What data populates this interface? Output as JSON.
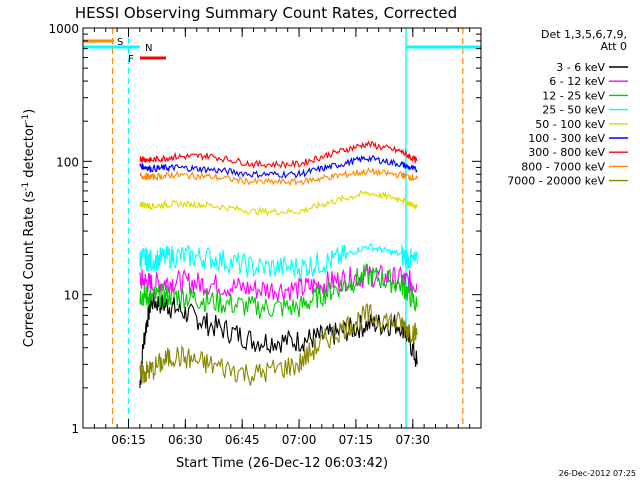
{
  "chart_data": {
    "type": "line",
    "title": "HESSI Observing Summary Count Rates, Corrected",
    "xlabel": "Start Time (26-Dec-12 06:03:42)",
    "ylabel_main": "Corrected Count Rate (s",
    "ylabel_sup1": "-1",
    "ylabel_mid": " detector",
    "ylabel_sup2": "-1",
    "ylabel_end": ")",
    "y_scale": "log",
    "ylim": [
      1,
      1000
    ],
    "xlim_minutes": [
      6.05,
      7.8
    ],
    "x_ticks": [
      {
        "label": "06:15",
        "value": 6.25
      },
      {
        "label": "06:30",
        "value": 6.5
      },
      {
        "label": "06:45",
        "value": 6.75
      },
      {
        "label": "07:00",
        "value": 7.0
      },
      {
        "label": "07:15",
        "value": 7.25
      },
      {
        "label": "07:30",
        "value": 7.5
      }
    ],
    "y_ticks": [
      {
        "label": "1",
        "value": 1
      },
      {
        "label": "10",
        "value": 10
      },
      {
        "label": "100",
        "value": 100
      },
      {
        "label": "1000",
        "value": 1000
      }
    ],
    "legend_header": [
      "Det 1,3,5,6,7,9,",
      "Att 0"
    ],
    "legend_placement": "top-right",
    "series": [
      {
        "name": "3 - 6 keV",
        "color": "#000000",
        "values": [
          [
            6.3,
            2
          ],
          [
            6.35,
            9
          ],
          [
            6.45,
            8
          ],
          [
            6.6,
            6
          ],
          [
            6.8,
            4.5
          ],
          [
            7.0,
            4.5
          ],
          [
            7.15,
            5
          ],
          [
            7.3,
            6
          ],
          [
            7.45,
            6
          ],
          [
            7.52,
            3
          ]
        ]
      },
      {
        "name": "6 - 12 keV",
        "color": "#ff00ff",
        "values": [
          [
            6.3,
            13
          ],
          [
            6.35,
            12
          ],
          [
            6.45,
            12.5
          ],
          [
            6.6,
            12
          ],
          [
            6.8,
            11
          ],
          [
            7.0,
            11
          ],
          [
            7.15,
            12.5
          ],
          [
            7.3,
            14
          ],
          [
            7.45,
            13
          ],
          [
            7.52,
            12
          ]
        ]
      },
      {
        "name": "12 - 25 keV",
        "color": "#00cc00",
        "values": [
          [
            6.3,
            10
          ],
          [
            6.35,
            9.5
          ],
          [
            6.45,
            10
          ],
          [
            6.6,
            9
          ],
          [
            6.8,
            8
          ],
          [
            7.0,
            8
          ],
          [
            7.15,
            11
          ],
          [
            7.3,
            14
          ],
          [
            7.45,
            12
          ],
          [
            7.52,
            8
          ]
        ]
      },
      {
        "name": "25 - 50 keV",
        "color": "#00ffff",
        "values": [
          [
            6.3,
            19
          ],
          [
            6.35,
            18
          ],
          [
            6.45,
            19.5
          ],
          [
            6.6,
            19
          ],
          [
            6.8,
            16
          ],
          [
            7.0,
            16
          ],
          [
            7.15,
            18
          ],
          [
            7.3,
            23
          ],
          [
            7.45,
            20
          ],
          [
            7.52,
            17
          ]
        ]
      },
      {
        "name": "50 - 100 keV",
        "color": "#dddd00",
        "values": [
          [
            6.3,
            48
          ],
          [
            6.35,
            46
          ],
          [
            6.45,
            48
          ],
          [
            6.6,
            47
          ],
          [
            6.8,
            42
          ],
          [
            7.0,
            42
          ],
          [
            7.15,
            50
          ],
          [
            7.3,
            58
          ],
          [
            7.45,
            52
          ],
          [
            7.52,
            45
          ]
        ]
      },
      {
        "name": "100 - 300 keV",
        "color": "#0000ff",
        "values": [
          [
            6.3,
            93
          ],
          [
            6.35,
            88
          ],
          [
            6.45,
            90
          ],
          [
            6.6,
            87
          ],
          [
            6.8,
            80
          ],
          [
            7.0,
            80
          ],
          [
            7.15,
            92
          ],
          [
            7.3,
            106
          ],
          [
            7.45,
            95
          ],
          [
            7.52,
            85
          ]
        ]
      },
      {
        "name": "300 - 800 keV",
        "color": "#ff0000",
        "values": [
          [
            6.3,
            105
          ],
          [
            6.35,
            102
          ],
          [
            6.45,
            108
          ],
          [
            6.6,
            110
          ],
          [
            6.8,
            95
          ],
          [
            7.0,
            95
          ],
          [
            7.15,
            115
          ],
          [
            7.3,
            135
          ],
          [
            7.45,
            118
          ],
          [
            7.52,
            100
          ]
        ]
      },
      {
        "name": "800 - 7000 keV",
        "color": "#ff8800",
        "values": [
          [
            6.3,
            78
          ],
          [
            6.35,
            76
          ],
          [
            6.45,
            79
          ],
          [
            6.6,
            77
          ],
          [
            6.8,
            70
          ],
          [
            7.0,
            70
          ],
          [
            7.15,
            77
          ],
          [
            7.3,
            84
          ],
          [
            7.45,
            79
          ],
          [
            7.52,
            74
          ]
        ]
      },
      {
        "name": "7000 - 20000 keV",
        "color": "#888800",
        "values": [
          [
            6.3,
            2.5
          ],
          [
            6.35,
            2.7
          ],
          [
            6.45,
            3.5
          ],
          [
            6.6,
            3
          ],
          [
            6.8,
            2.5
          ],
          [
            7.0,
            3
          ],
          [
            7.15,
            5
          ],
          [
            7.3,
            7
          ],
          [
            7.45,
            6
          ],
          [
            7.52,
            5
          ]
        ]
      }
    ],
    "flags": [
      {
        "label": "S",
        "color": "#ff8800",
        "dashed_times": [
          6.18,
          7.72
        ]
      },
      {
        "label": "N",
        "color": "#00ffff",
        "dashed_times": [
          6.25
        ],
        "solid_times": [
          7.47
        ]
      },
      {
        "label": "F",
        "color": "#ff0000"
      }
    ]
  },
  "footer": {
    "date_stamp": "26-Dec-2012 07:25"
  }
}
